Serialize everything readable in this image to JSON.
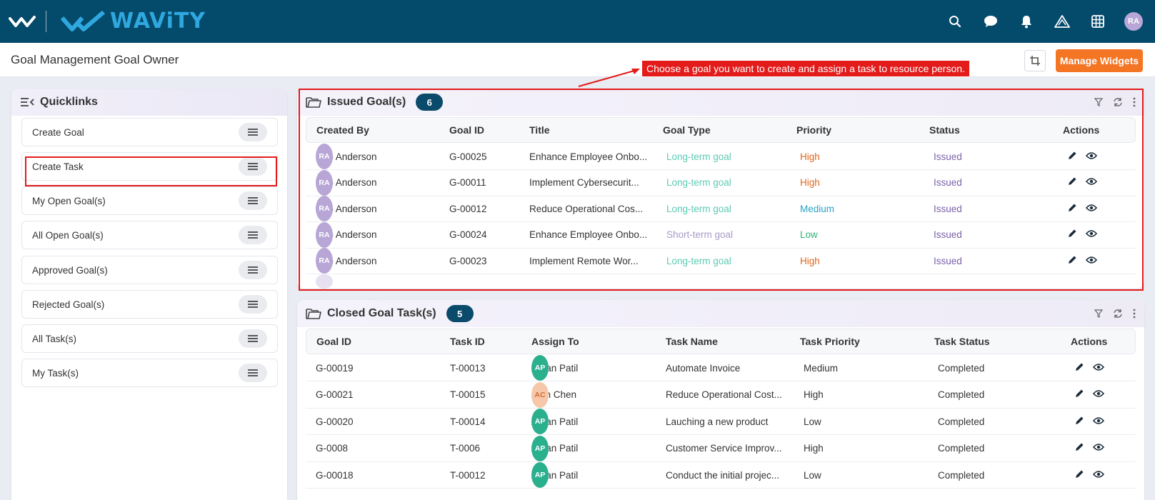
{
  "app": {
    "brand": "WAViTY",
    "page_title": "Goal Management Goal Owner"
  },
  "header": {
    "icons": [
      "search-icon",
      "chat-icon",
      "bell-icon",
      "warning-icon",
      "grid-icon"
    ],
    "avatar": "RA"
  },
  "callout_text": "Choose a goal you want to create and assign a task to resource person.",
  "toolbar": {
    "manage_widgets": "Manage Widgets"
  },
  "quicklinks": {
    "title": "Quicklinks",
    "items": [
      {
        "label": "Create Goal"
      },
      {
        "label": "Create Task"
      },
      {
        "label": "My Open Goal(s)"
      },
      {
        "label": "All Open Goal(s)"
      },
      {
        "label": "Approved Goal(s)"
      },
      {
        "label": "Rejected Goal(s)"
      },
      {
        "label": "All Task(s)"
      },
      {
        "label": "My Task(s)"
      }
    ]
  },
  "issued": {
    "title": "Issued Goal(s)",
    "count": "6",
    "columns": [
      "Created By",
      "Goal ID",
      "Title",
      "Goal Type",
      "Priority",
      "Status",
      "Actions"
    ],
    "rows": [
      {
        "initials": "RA",
        "created_by": "Rob Anderson",
        "goal_id": "G-00025",
        "title": "Enhance Employee Onbo...",
        "goal_type": "Long-term goal",
        "priority": "High",
        "status": "Issued"
      },
      {
        "initials": "RA",
        "created_by": "Rob Anderson",
        "goal_id": "G-00011",
        "title": "Implement Cybersecurit...",
        "goal_type": "Long-term goal",
        "priority": "High",
        "status": "Issued"
      },
      {
        "initials": "RA",
        "created_by": "Rob Anderson",
        "goal_id": "G-00012",
        "title": "Reduce Operational Cos...",
        "goal_type": "Long-term goal",
        "priority": "Medium",
        "status": "Issued"
      },
      {
        "initials": "RA",
        "created_by": "Rob Anderson",
        "goal_id": "G-00024",
        "title": "Enhance Employee Onbo...",
        "goal_type": "Short-term goal",
        "priority": "Low",
        "status": "Issued"
      },
      {
        "initials": "RA",
        "created_by": "Rob Anderson",
        "goal_id": "G-00023",
        "title": "Implement Remote Wor...",
        "goal_type": "Long-term goal",
        "priority": "High",
        "status": "Issued"
      }
    ]
  },
  "closed": {
    "title": "Closed Goal Task(s)",
    "count": "5",
    "columns": [
      "Goal ID",
      "Task ID",
      "Assign To",
      "Task Name",
      "Task Priority",
      "Task Status",
      "Actions"
    ],
    "rows": [
      {
        "goal_id": "G-00019",
        "task_id": "T-00013",
        "initials": "AP",
        "assign_to": "Aman Patil",
        "task_name": "Automate Invoice",
        "priority": "Medium",
        "status": "Completed"
      },
      {
        "goal_id": "G-00021",
        "task_id": "T-00015",
        "initials": "AC",
        "assign_to": "Alan Chen",
        "task_name": "Reduce Operational Cost...",
        "priority": "High",
        "status": "Completed"
      },
      {
        "goal_id": "G-00020",
        "task_id": "T-00014",
        "initials": "AP",
        "assign_to": "Aman Patil",
        "task_name": "Lauching a new product",
        "priority": "Low",
        "status": "Completed"
      },
      {
        "goal_id": "G-0008",
        "task_id": "T-0006",
        "initials": "AP",
        "assign_to": "Aman Patil",
        "task_name": "Customer Service Improv...",
        "priority": "High",
        "status": "Completed"
      },
      {
        "goal_id": "G-00018",
        "task_id": "T-00012",
        "initials": "AP",
        "assign_to": "Aman Patil",
        "task_name": "Conduct the initial projec...",
        "priority": "Low",
        "status": "Completed"
      }
    ]
  },
  "colors": {
    "topbar": "#044a6b",
    "brand": "#2fa8e0",
    "accent_orange": "#f47524",
    "badge": "#0a4a6a",
    "long_term": "#5cc9b5",
    "short_term": "#a79bc9",
    "high": "#e0661d",
    "medium": "#2aa3c7",
    "low": "#2bb673",
    "issued": "#7a5fa8",
    "avatar_ra": "#b7a6d6",
    "avatar_ap": "#2bb08e",
    "avatar_ac": "#f6c7a8",
    "callout": "#e31b1b"
  }
}
